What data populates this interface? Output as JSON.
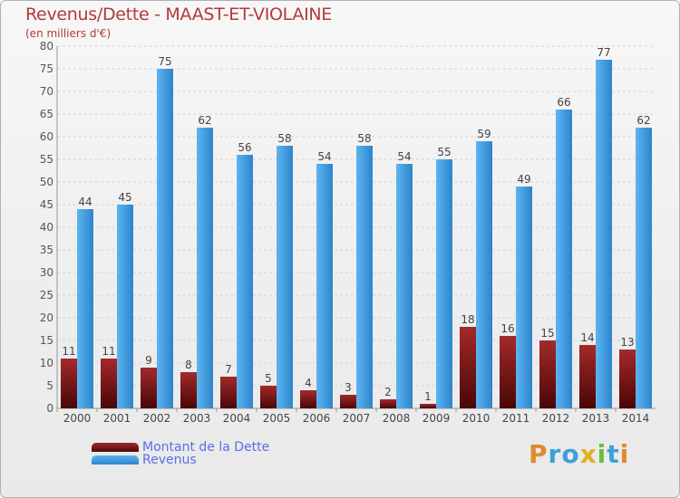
{
  "title": "Revenus/Dette - MAAST-ET-VIOLAINE",
  "subtitle": "(en milliers d'€)",
  "logo": "Proxiti",
  "colors": {
    "dette": "#7a1515",
    "revenus": "#3d9be0",
    "text": "#b23a3a",
    "legend_text": "#5a6ee6"
  },
  "chart_data": {
    "type": "bar",
    "title": "Revenus/Dette - MAAST-ET-VIOLAINE",
    "ylabel": "(en milliers d'€)",
    "xlabel": "",
    "categories": [
      "2000",
      "2001",
      "2002",
      "2003",
      "2004",
      "2005",
      "2006",
      "2007",
      "2008",
      "2009",
      "2010",
      "2011",
      "2012",
      "2013",
      "2014"
    ],
    "series": [
      {
        "name": "Montant de la Dette",
        "values": [
          11,
          11,
          9,
          8,
          7,
          5,
          4,
          3,
          2,
          1,
          18,
          16,
          15,
          14,
          13
        ]
      },
      {
        "name": "Revenus",
        "values": [
          44,
          45,
          75,
          62,
          56,
          58,
          54,
          58,
          54,
          55,
          59,
          49,
          66,
          77,
          62
        ]
      }
    ],
    "ylim": [
      0,
      80
    ],
    "yticks": [
      0,
      5,
      10,
      15,
      20,
      25,
      30,
      35,
      40,
      45,
      50,
      55,
      60,
      65,
      70,
      75,
      80
    ],
    "grid": true,
    "legend": "bottom-left"
  }
}
